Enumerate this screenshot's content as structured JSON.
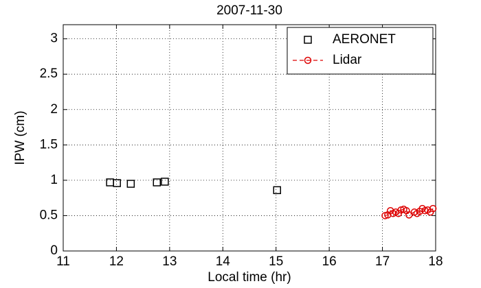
{
  "chart_data": {
    "type": "scatter",
    "title": "2007-11-30",
    "x_label": "Local time (hr)",
    "y_label": "IPW (cm)",
    "xlim": [
      11,
      18
    ],
    "xticks": [
      11,
      12,
      13,
      14,
      15,
      16,
      17,
      18
    ],
    "ylim": [
      0,
      3.2
    ],
    "yticks": [
      0,
      0.5,
      1,
      1.5,
      2,
      2.5,
      3
    ],
    "grid": true,
    "legend": "upper right",
    "series": [
      {
        "name": "AERONET",
        "color": "#000000",
        "marker": "square",
        "line": "none",
        "x": [
          11.88,
          12.01,
          12.27,
          12.76,
          12.91,
          15.02
        ],
        "values": [
          0.97,
          0.96,
          0.95,
          0.97,
          0.98,
          0.86
        ]
      },
      {
        "name": "Lidar",
        "color": "#dd0000",
        "marker": "circle",
        "line": "dashed",
        "x": [
          17.05,
          17.1,
          17.15,
          17.2,
          17.25,
          17.3,
          17.35,
          17.4,
          17.45,
          17.5,
          17.6,
          17.65,
          17.7,
          17.75,
          17.8,
          17.85,
          17.9,
          17.95
        ],
        "values": [
          0.5,
          0.51,
          0.57,
          0.53,
          0.55,
          0.53,
          0.58,
          0.59,
          0.57,
          0.51,
          0.55,
          0.53,
          0.56,
          0.6,
          0.57,
          0.58,
          0.55,
          0.6
        ]
      }
    ]
  }
}
